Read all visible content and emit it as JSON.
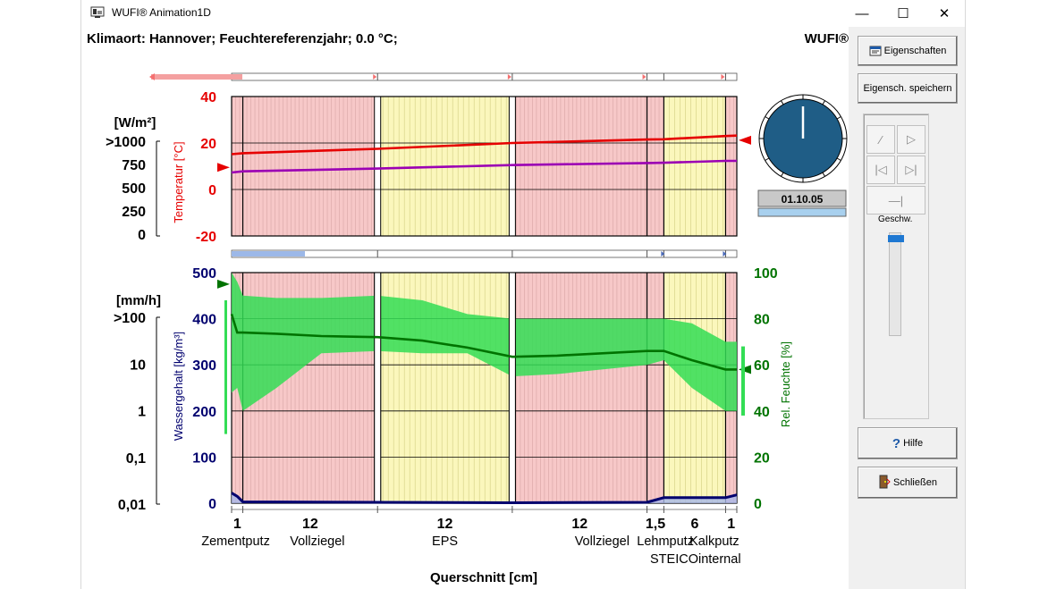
{
  "window": {
    "title": "WUFI® Animation1D",
    "minimize": "—",
    "maximize": "☐",
    "close": "✕"
  },
  "header": {
    "climate": "Klimaort: Hannover; Feuchtereferenzjahr; 0.0 °C;",
    "brand": "WUFI®"
  },
  "colors": {
    "temperature": "#e60000",
    "dewpoint": "#9b00b4",
    "water": "#00006e",
    "humidity": "#007300",
    "humidity_band": "#33dd55",
    "masonry": "#f7c8c8",
    "insulation": "#fbf7bc",
    "gauge": "#1f5d86"
  },
  "chart_data": [
    {
      "type": "line",
      "name": "upper-panel",
      "y_left_label": "Temperatur [°C]",
      "y_left_ticks": [
        "40",
        "20",
        "0",
        "-20"
      ],
      "y_left_range": [
        -20,
        40
      ],
      "y_far_label": "[W/m²]",
      "y_far_ticks": [
        ">1000",
        "750",
        "500",
        "250",
        "0"
      ],
      "series": [
        {
          "x": [
            0,
            1,
            13,
            25,
            37,
            38.5,
            44,
            45
          ],
          "values": [
            15.2,
            15.6,
            17.5,
            20.0,
            21.5,
            21.6,
            23.0,
            23.2
          ]
        },
        {
          "x": [
            0,
            1,
            13,
            25,
            37,
            38.5,
            44,
            45
          ],
          "values": [
            7.3,
            7.8,
            9.0,
            10.5,
            11.4,
            11.5,
            12.3,
            12.3
          ]
        }
      ],
      "boundary_left_temperature": 9.5,
      "boundary_right_temperature": 21.2
    },
    {
      "type": "area",
      "name": "lower-panel",
      "y_left_label": "Wassergehalt [kg/m³]",
      "y_left_ticks": [
        "500",
        "400",
        "300",
        "200",
        "100",
        "0"
      ],
      "y_left_range": [
        0,
        500
      ],
      "y_right_label": "Rel. Feuchte [%]",
      "y_right_ticks": [
        "100",
        "80",
        "60",
        "40",
        "20",
        "0"
      ],
      "y_right_range": [
        0,
        100
      ],
      "y_far_label": "[mm/h]",
      "y_far_ticks": [
        ">100",
        "10",
        "1",
        "0,1",
        "0,01"
      ],
      "water_content": {
        "x": [
          0,
          0.5,
          1,
          13,
          25,
          37,
          38.5,
          44,
          45
        ],
        "values": [
          22,
          15,
          3,
          2,
          1,
          2,
          12,
          12,
          18
        ]
      },
      "relative_humidity": {
        "x": [
          0,
          0.5,
          1,
          4,
          8,
          13,
          17,
          21,
          25,
          29,
          33,
          37,
          38.5,
          41,
          44,
          45
        ],
        "values": [
          82,
          74,
          74,
          73.5,
          72.5,
          72,
          70.5,
          67.5,
          63.5,
          64,
          65,
          66,
          66,
          62,
          58,
          58
        ],
        "band_upper": [
          100,
          96,
          90,
          89,
          89,
          90,
          88,
          82,
          80,
          80,
          80,
          80,
          80,
          78,
          70,
          70
        ],
        "band_lower": [
          48,
          50,
          40,
          50,
          65,
          66,
          65,
          65,
          55,
          56,
          58,
          60,
          62,
          50,
          40,
          40
        ]
      },
      "boundary_left_humidity": 95,
      "boundary_right_humidity": 58
    }
  ],
  "x_axis": {
    "title": "Querschnitt [cm]",
    "thickness_labels": [
      "1",
      "12",
      "12",
      "12",
      "1,5",
      "6",
      "1"
    ],
    "materials": [
      "Zementputz",
      "Vollziegel",
      "EPS",
      "Vollziegel",
      "Lehmputz",
      "STEICOinternal",
      "Kalkputz"
    ],
    "layers": [
      {
        "from": 0,
        "to": 1,
        "kind": "masonry"
      },
      {
        "from": 1,
        "to": 13,
        "kind": "masonry"
      },
      {
        "from": 13,
        "to": 25,
        "kind": "insulation"
      },
      {
        "from": 25,
        "to": 37,
        "kind": "masonry"
      },
      {
        "from": 37,
        "to": 38.5,
        "kind": "masonry"
      },
      {
        "from": 38.5,
        "to": 44,
        "kind": "insulation"
      },
      {
        "from": 44,
        "to": 45,
        "kind": "masonry"
      }
    ]
  },
  "gauge": {
    "date": "01.10.05"
  },
  "sidebar": {
    "properties": "Eigenschaften",
    "save_properties": "Eigensch. speichern",
    "speed": "Geschw.",
    "help": "Hilfe",
    "close": "Schließen"
  }
}
